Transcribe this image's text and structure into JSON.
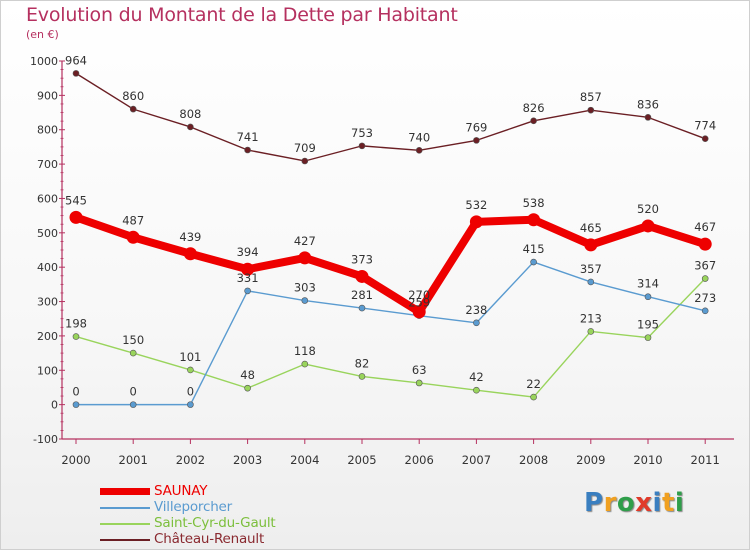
{
  "chart_data": {
    "type": "line",
    "title": "Evolution du Montant de la Dette par Habitant",
    "subtitle": "(en €)",
    "categories": [
      "2000",
      "2001",
      "2002",
      "2003",
      "2004",
      "2005",
      "2006",
      "2007",
      "2008",
      "2009",
      "2010",
      "2011"
    ],
    "ylim": [
      -100,
      1000
    ],
    "yticks": [
      "-100",
      "0",
      "100",
      "200",
      "300",
      "400",
      "500",
      "600",
      "700",
      "800",
      "900",
      "1000"
    ],
    "grid": false,
    "legend_position": "bottom-left",
    "series": [
      {
        "name": "Château-Renault",
        "color": "#6b1f24",
        "values": [
          964,
          860,
          808,
          741,
          709,
          753,
          740,
          769,
          826,
          857,
          836,
          774
        ]
      },
      {
        "name": "Saint-Cyr-du-Gault",
        "color": "#99d45c",
        "values": [
          198,
          150,
          101,
          48,
          118,
          82,
          63,
          42,
          22,
          213,
          195,
          367
        ]
      },
      {
        "name": "Villeporcher",
        "color": "#5a9bd0",
        "values": [
          0,
          0,
          0,
          331,
          303,
          281,
          259,
          238,
          415,
          357,
          314,
          273
        ]
      },
      {
        "name": "SAUNAY",
        "color": "#ee0000",
        "values": [
          545,
          487,
          439,
          394,
          427,
          373,
          270,
          532,
          538,
          465,
          520,
          467
        ]
      }
    ],
    "label_overrides": {
      "Villeporcher": [
        "0",
        "0",
        "0",
        "331",
        "303",
        "281",
        "259",
        "238",
        "415",
        "357",
        "314",
        "273"
      ]
    }
  },
  "legend": [
    {
      "label": "SAUNAY",
      "color": "#ee0000"
    },
    {
      "label": "Villeporcher",
      "color": "#5a9bd0"
    },
    {
      "label": "Saint-Cyr-du-Gault",
      "color": "#99d45c"
    },
    {
      "label": "Château-Renault",
      "color": "#6b1f24"
    }
  ],
  "logo": {
    "letters": [
      "P",
      "r",
      "o",
      "x",
      "i",
      "t",
      "i"
    ],
    "colors": [
      "#3a7fc0",
      "#f0a020",
      "#2f9e4a",
      "#e03a2a",
      "#3a7fc0",
      "#f0a020",
      "#2f9e4a"
    ]
  }
}
